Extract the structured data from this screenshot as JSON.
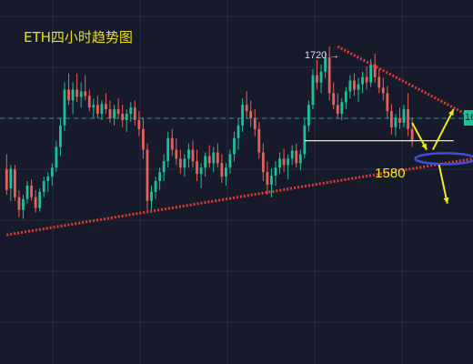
{
  "title": "ETH四小时趋势图",
  "colors": {
    "background": "#161a2b",
    "grid": "#242a3d",
    "up": "#1fbf9a",
    "down": "#e2625c",
    "trendline": "#e53935",
    "support_line": "#e8e8e8",
    "annotation_arrow": "#f0ea1a",
    "ellipse": "#3b4fd8",
    "current_price_line": "#1fbf9a"
  },
  "chart_data": {
    "type": "candlestick",
    "title": "ETH四小时趋势图",
    "xlabel": "",
    "ylabel": "",
    "grid": true,
    "ylim": [
      1300,
      1800
    ],
    "candles": [
      [
        1583,
        1600,
        1555,
        1560
      ],
      [
        1562,
        1588,
        1548,
        1584
      ],
      [
        1583,
        1588,
        1548,
        1552
      ],
      [
        1552,
        1560,
        1530,
        1538
      ],
      [
        1538,
        1555,
        1528,
        1550
      ],
      [
        1550,
        1570,
        1545,
        1565
      ],
      [
        1565,
        1572,
        1548,
        1552
      ],
      [
        1552,
        1560,
        1535,
        1540
      ],
      [
        1540,
        1562,
        1536,
        1558
      ],
      [
        1558,
        1575,
        1552,
        1570
      ],
      [
        1570,
        1580,
        1558,
        1575
      ],
      [
        1575,
        1590,
        1565,
        1585
      ],
      [
        1585,
        1615,
        1580,
        1608
      ],
      [
        1608,
        1640,
        1598,
        1632
      ],
      [
        1632,
        1680,
        1626,
        1672
      ],
      [
        1672,
        1690,
        1655,
        1660
      ],
      [
        1660,
        1680,
        1645,
        1672
      ],
      [
        1672,
        1690,
        1658,
        1664
      ],
      [
        1664,
        1680,
        1652,
        1670
      ],
      [
        1670,
        1688,
        1660,
        1665
      ],
      [
        1665,
        1672,
        1648,
        1652
      ],
      [
        1652,
        1662,
        1640,
        1655
      ],
      [
        1655,
        1665,
        1640,
        1645
      ],
      [
        1645,
        1660,
        1638,
        1656
      ],
      [
        1656,
        1668,
        1645,
        1650
      ],
      [
        1650,
        1660,
        1635,
        1640
      ],
      [
        1640,
        1655,
        1632,
        1650
      ],
      [
        1650,
        1662,
        1640,
        1645
      ],
      [
        1645,
        1655,
        1630,
        1638
      ],
      [
        1638,
        1650,
        1625,
        1645
      ],
      [
        1645,
        1658,
        1636,
        1652
      ],
      [
        1652,
        1660,
        1632,
        1638
      ],
      [
        1638,
        1648,
        1620,
        1628
      ],
      [
        1628,
        1640,
        1595,
        1605
      ],
      [
        1605,
        1612,
        1535,
        1548
      ],
      [
        1548,
        1565,
        1538,
        1558
      ],
      [
        1558,
        1575,
        1550,
        1570
      ],
      [
        1570,
        1585,
        1560,
        1580
      ],
      [
        1580,
        1600,
        1570,
        1592
      ],
      [
        1592,
        1625,
        1585,
        1618
      ],
      [
        1618,
        1628,
        1598,
        1605
      ],
      [
        1605,
        1618,
        1588,
        1595
      ],
      [
        1595,
        1605,
        1578,
        1585
      ],
      [
        1585,
        1600,
        1575,
        1595
      ],
      [
        1595,
        1612,
        1585,
        1605
      ],
      [
        1605,
        1615,
        1585,
        1592
      ],
      [
        1592,
        1605,
        1570,
        1578
      ],
      [
        1578,
        1590,
        1562,
        1585
      ],
      [
        1585,
        1602,
        1575,
        1598
      ],
      [
        1598,
        1610,
        1585,
        1590
      ],
      [
        1590,
        1608,
        1580,
        1602
      ],
      [
        1602,
        1612,
        1585,
        1590
      ],
      [
        1590,
        1600,
        1568,
        1575
      ],
      [
        1575,
        1590,
        1565,
        1585
      ],
      [
        1585,
        1605,
        1578,
        1600
      ],
      [
        1600,
        1625,
        1592,
        1618
      ],
      [
        1618,
        1640,
        1605,
        1632
      ],
      [
        1632,
        1662,
        1625,
        1655
      ],
      [
        1655,
        1670,
        1640,
        1648
      ],
      [
        1648,
        1660,
        1630,
        1640
      ],
      [
        1640,
        1650,
        1620,
        1628
      ],
      [
        1628,
        1636,
        1595,
        1602
      ],
      [
        1602,
        1612,
        1570,
        1580
      ],
      [
        1580,
        1592,
        1555,
        1566
      ],
      [
        1566,
        1584,
        1552,
        1576
      ],
      [
        1576,
        1592,
        1565,
        1585
      ],
      [
        1585,
        1602,
        1578,
        1595
      ],
      [
        1595,
        1606,
        1580,
        1588
      ],
      [
        1588,
        1600,
        1572,
        1595
      ],
      [
        1595,
        1610,
        1588,
        1604
      ],
      [
        1604,
        1612,
        1585,
        1590
      ],
      [
        1590,
        1605,
        1582,
        1600
      ],
      [
        1600,
        1640,
        1595,
        1632
      ],
      [
        1632,
        1660,
        1625,
        1655
      ],
      [
        1655,
        1695,
        1650,
        1688
      ],
      [
        1688,
        1705,
        1672,
        1680
      ],
      [
        1680,
        1700,
        1668,
        1692
      ],
      [
        1692,
        1715,
        1685,
        1708
      ],
      [
        1708,
        1720,
        1660,
        1668
      ],
      [
        1668,
        1680,
        1650,
        1655
      ],
      [
        1655,
        1668,
        1640,
        1645
      ],
      [
        1645,
        1662,
        1638,
        1658
      ],
      [
        1658,
        1675,
        1650,
        1670
      ],
      [
        1670,
        1688,
        1662,
        1682
      ],
      [
        1682,
        1690,
        1665,
        1672
      ],
      [
        1672,
        1685,
        1658,
        1678
      ],
      [
        1678,
        1692,
        1668,
        1686
      ],
      [
        1686,
        1698,
        1672,
        1680
      ],
      [
        1680,
        1706,
        1675,
        1700
      ],
      [
        1700,
        1712,
        1680,
        1686
      ],
      [
        1686,
        1695,
        1668,
        1674
      ],
      [
        1674,
        1685,
        1660,
        1668
      ],
      [
        1668,
        1676,
        1640,
        1648
      ],
      [
        1648,
        1656,
        1622,
        1630
      ],
      [
        1630,
        1645,
        1620,
        1640
      ],
      [
        1640,
        1652,
        1628,
        1635
      ],
      [
        1635,
        1655,
        1630,
        1650
      ],
      [
        1650,
        1668,
        1620,
        1628
      ],
      [
        1628,
        1640,
        1608,
        1614
      ]
    ],
    "current_price": 1640,
    "annotations": [
      {
        "type": "text",
        "text": "1720 →",
        "price": 1720
      },
      {
        "type": "text",
        "text": "1580",
        "price": 1580
      },
      {
        "type": "horizontal_line",
        "price": 1615
      },
      {
        "type": "trendline",
        "name": "resistance",
        "from": [
          80,
          1720
        ],
        "to": [
          112,
          1640
        ]
      },
      {
        "type": "trendline",
        "name": "support",
        "from": [
          0,
          1510
        ],
        "to": [
          112,
          1595
        ]
      }
    ]
  }
}
